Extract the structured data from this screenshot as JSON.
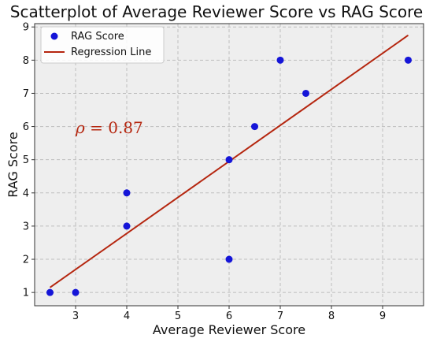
{
  "chart_data": {
    "type": "scatter",
    "title": "Scatterplot of Average Reviewer Score vs RAG Score",
    "xlabel": "Average Reviewer Score",
    "ylabel": "RAG Score",
    "xlim": [
      2.2,
      9.8
    ],
    "ylim": [
      0.6,
      9.1
    ],
    "xticks": [
      3,
      4,
      5,
      6,
      7,
      8,
      9
    ],
    "yticks": [
      1,
      2,
      3,
      4,
      5,
      6,
      7,
      8,
      9
    ],
    "grid": true,
    "legend_position": "top-left",
    "series": [
      {
        "name": "RAG Score",
        "kind": "scatter",
        "color": "#1515d8",
        "x": [
          2.5,
          3,
          4,
          4,
          6,
          6,
          6.5,
          7,
          7.5,
          9.5
        ],
        "y": [
          1,
          1,
          3,
          4,
          2,
          5,
          6,
          8,
          7,
          8
        ]
      },
      {
        "name": "Regression Line",
        "kind": "line",
        "color": "#b5260f",
        "x": [
          2.5,
          9.5
        ],
        "y": [
          1.15,
          8.75
        ]
      }
    ],
    "annotation": {
      "symbol": "ρ",
      "value_text": " = 0.87",
      "x": 3.0,
      "y": 5.8,
      "color": "#b5260f"
    }
  }
}
